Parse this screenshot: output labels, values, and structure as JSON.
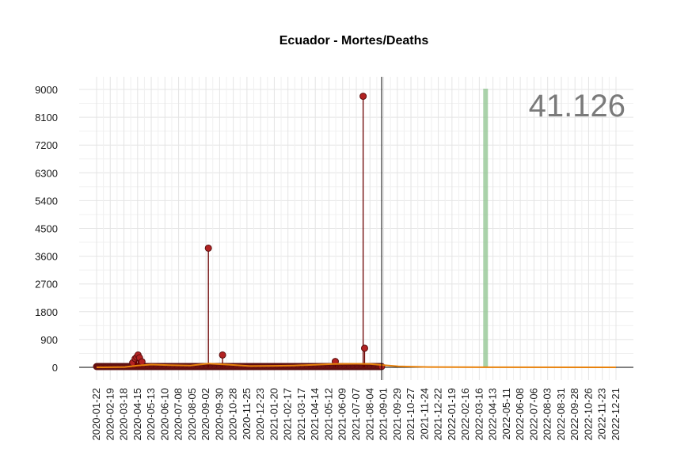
{
  "chart_data": {
    "type": "line",
    "title": "Ecuador - Mortes/Deaths",
    "total_label": "41.126",
    "xlabel": "",
    "ylabel": "",
    "ylim": [
      -700,
      9000
    ],
    "y_ticks": [
      0,
      900,
      1800,
      2700,
      3600,
      4500,
      5400,
      6300,
      7200,
      8100,
      9000
    ],
    "x_start": "2020-01-22",
    "x_end": "2022-12-21",
    "x_ticks": [
      "2020-01-22",
      "2020-02-19",
      "2020-03-18",
      "2020-04-15",
      "2020-05-13",
      "2020-06-10",
      "2020-07-08",
      "2020-08-05",
      "2020-09-02",
      "2020-09-30",
      "2020-10-28",
      "2020-11-25",
      "2020-12-23",
      "2021-01-20",
      "2021-02-17",
      "2021-03-17",
      "2021-04-14",
      "2021-05-12",
      "2021-06-09",
      "2021-07-07",
      "2021-08-04",
      "2021-09-01",
      "2021-09-29",
      "2021-10-27",
      "2021-11-24",
      "2021-12-22",
      "2022-01-19",
      "2022-02-16",
      "2022-03-16",
      "2022-04-13",
      "2022-05-11",
      "2022-06-08",
      "2022-07-06",
      "2022-08-03",
      "2022-08-31",
      "2022-09-28",
      "2022-10-26",
      "2022-11-23",
      "2022-12-21"
    ],
    "current_date": "2021-08-28",
    "highlight_band": {
      "start": "2022-03-24",
      "end": "2022-03-28"
    },
    "grid": true,
    "colors": {
      "points": "#b22222",
      "point_stroke": "#5a0e0e",
      "spikes": "#6b0000",
      "trend": "#e8820c",
      "highlight": "#8fc48f",
      "current_line": "#000000",
      "grid": "#e4e4e4"
    },
    "series": [
      {
        "name": "daily",
        "points": [
          {
            "x": "2020-04-05",
            "y": 150
          },
          {
            "x": "2020-04-10",
            "y": 280
          },
          {
            "x": "2020-04-13",
            "y": 330
          },
          {
            "x": "2020-04-16",
            "y": 400
          },
          {
            "x": "2020-04-19",
            "y": 310
          },
          {
            "x": "2020-04-24",
            "y": 180
          },
          {
            "x": "2020-09-07",
            "y": 3860
          },
          {
            "x": "2020-10-06",
            "y": 400
          },
          {
            "x": "2021-05-25",
            "y": 190
          },
          {
            "x": "2021-07-21",
            "y": 8780
          },
          {
            "x": "2021-07-24",
            "y": 620
          }
        ]
      },
      {
        "name": "trend",
        "points": [
          {
            "x": "2020-01-22",
            "y": 0
          },
          {
            "x": "2020-03-20",
            "y": 10
          },
          {
            "x": "2020-04-15",
            "y": 60
          },
          {
            "x": "2020-05-13",
            "y": 90
          },
          {
            "x": "2020-06-20",
            "y": 70
          },
          {
            "x": "2020-08-01",
            "y": 60
          },
          {
            "x": "2020-09-07",
            "y": 120
          },
          {
            "x": "2020-10-15",
            "y": 90
          },
          {
            "x": "2020-12-01",
            "y": 40
          },
          {
            "x": "2021-01-20",
            "y": 50
          },
          {
            "x": "2021-03-01",
            "y": 60
          },
          {
            "x": "2021-04-14",
            "y": 85
          },
          {
            "x": "2021-05-20",
            "y": 110
          },
          {
            "x": "2021-07-07",
            "y": 115
          },
          {
            "x": "2021-08-04",
            "y": 110
          },
          {
            "x": "2021-09-01",
            "y": 70
          },
          {
            "x": "2021-10-01",
            "y": 30
          },
          {
            "x": "2021-12-01",
            "y": 10
          },
          {
            "x": "2022-02-01",
            "y": 4
          },
          {
            "x": "2022-04-01",
            "y": 2
          },
          {
            "x": "2022-12-21",
            "y": 0
          }
        ]
      }
    ]
  }
}
